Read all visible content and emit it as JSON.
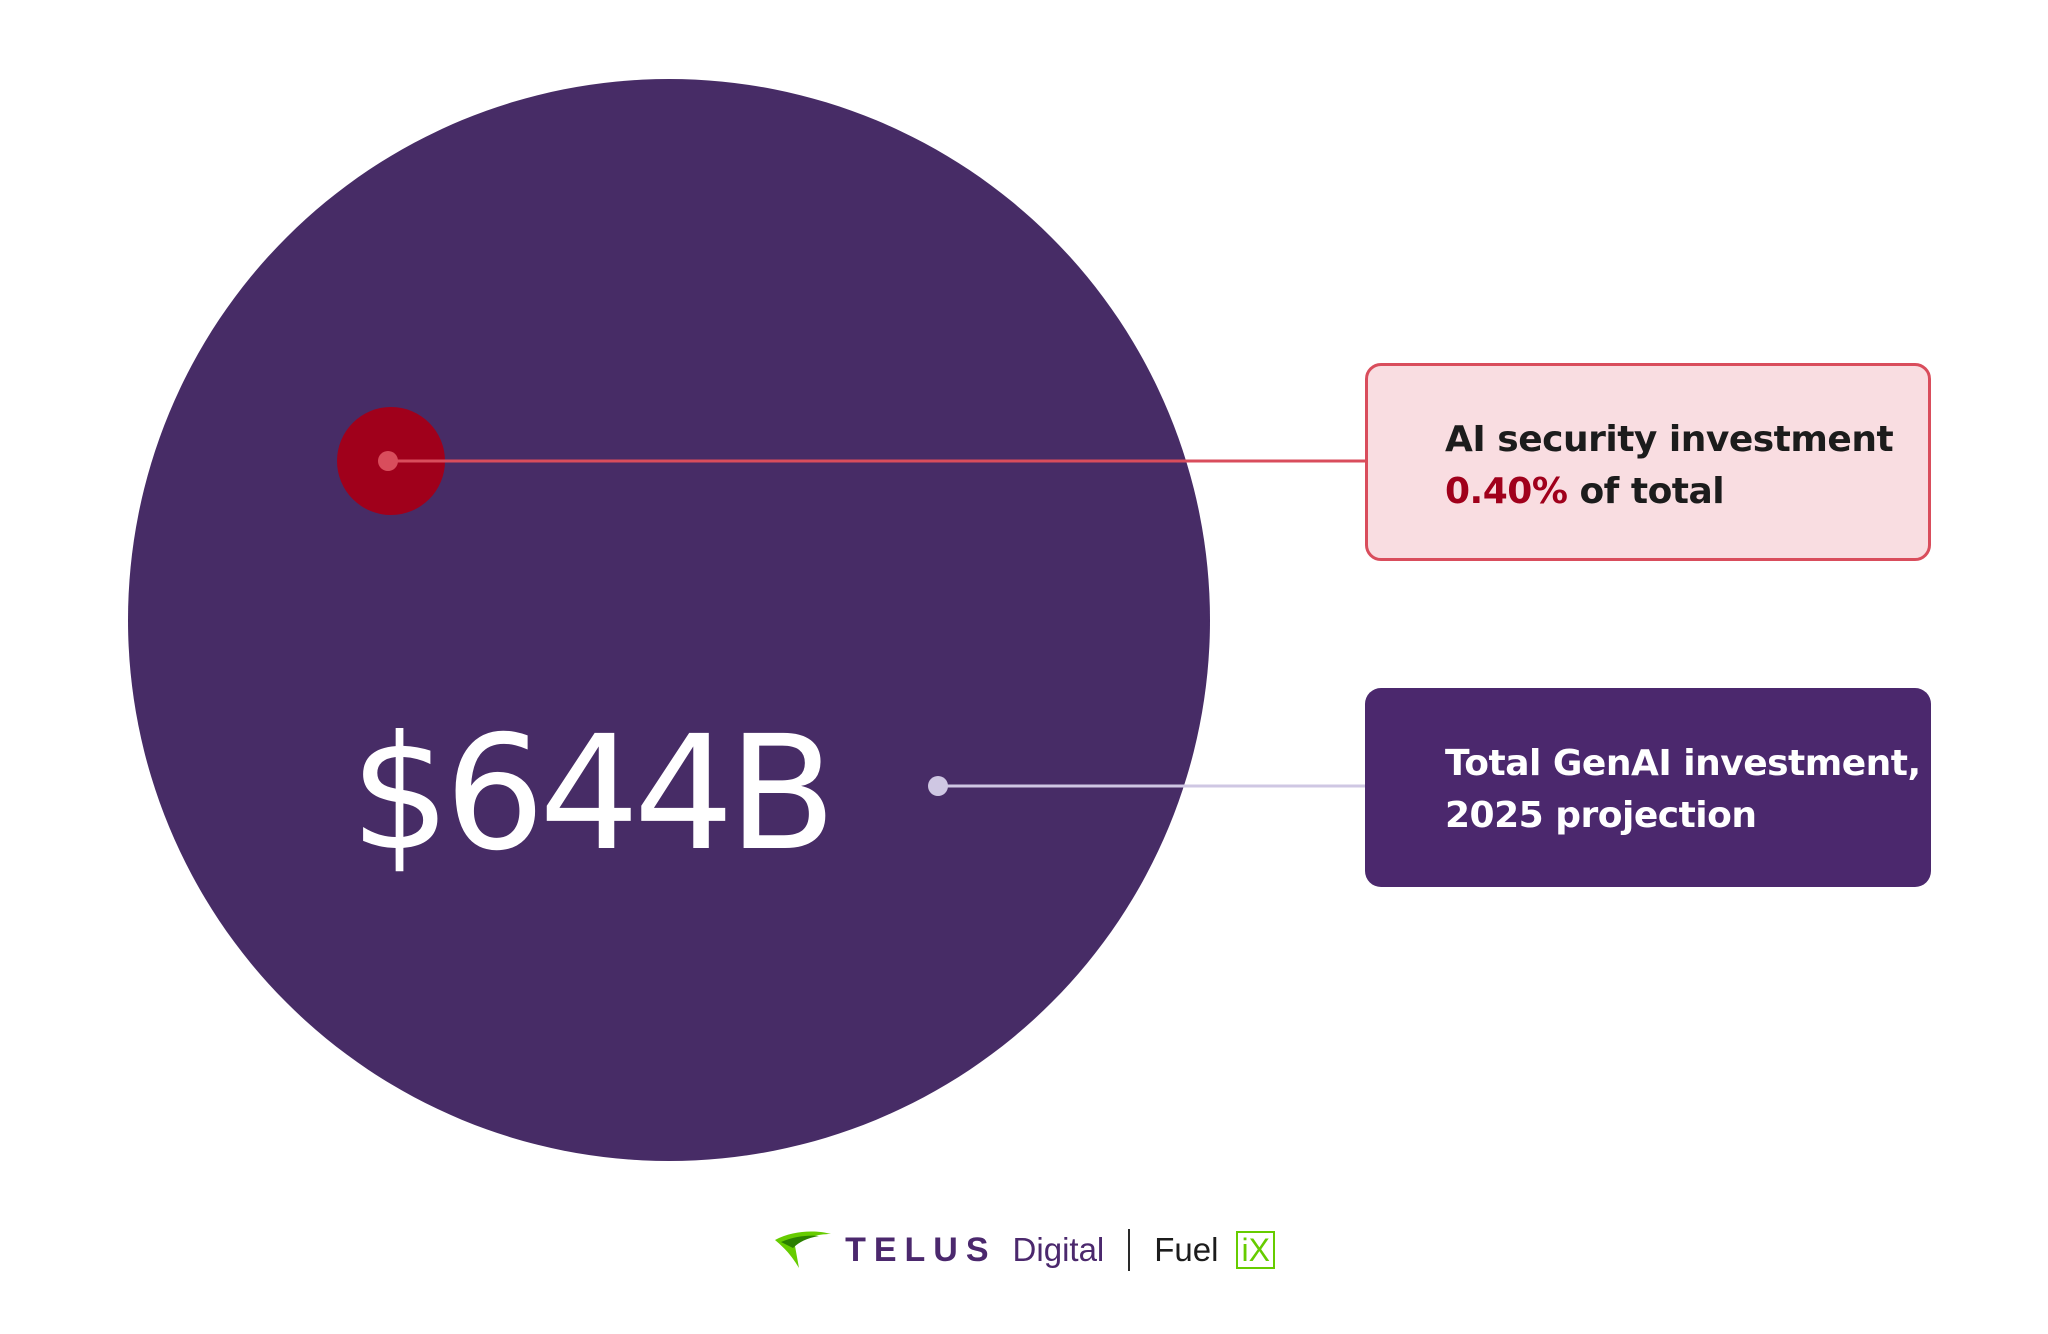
{
  "chart_data": {
    "type": "bubble",
    "title": "",
    "series": [
      {
        "name": "Total GenAI investment, 2025 projection",
        "value_label": "$644B",
        "share": 1.0,
        "color": "#472c66"
      },
      {
        "name": "AI security investment",
        "share": 0.004,
        "share_label": "0.40%",
        "color": "#a0001b"
      }
    ]
  },
  "callouts": {
    "security": {
      "line1": "AI security investment",
      "pct": "0.40%",
      "suffix": " of total"
    },
    "total": {
      "line1": "Total GenAI investment,",
      "line2": "2025 projection"
    }
  },
  "colors": {
    "big_circle": "#472c66",
    "small_circle": "#a0001b",
    "security_line": "#d94d5c",
    "total_line": "#cfc7e3"
  },
  "footer": {
    "brand": "TELUS",
    "brand_sub": "Digital",
    "product": "Fuel",
    "product_mark": "iX",
    "logo_icon": "telus-swoosh-icon"
  }
}
